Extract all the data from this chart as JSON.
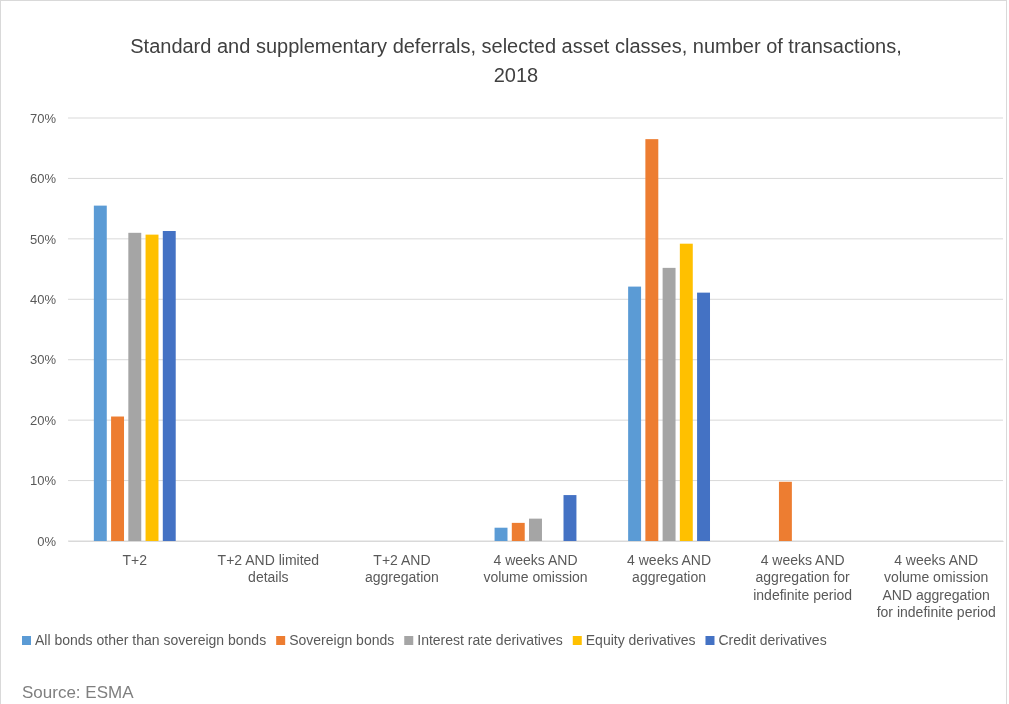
{
  "chart_data": {
    "type": "bar",
    "title": "Standard and supplementary deferrals, selected asset classes, number of transactions, 2018",
    "categories": [
      "T+2",
      "T+2 AND limited details",
      "T+2 AND aggregation",
      "4 weeks AND volume omission",
      "4 weeks AND aggregation",
      "4 weeks AND aggregation for indefinite period",
      "4 weeks AND volume omission AND aggregation for indefinite period"
    ],
    "series": [
      {
        "name": "All bonds other than sovereign bonds",
        "color": "#5b9bd5",
        "values": [
          55.5,
          0,
          0,
          2.2,
          42.1,
          0,
          0
        ]
      },
      {
        "name": "Sovereign bonds",
        "color": "#ed7d31",
        "values": [
          20.6,
          0,
          0,
          3,
          66.5,
          9.8,
          0
        ]
      },
      {
        "name": "Interest rate derivatives",
        "color": "#a5a5a5",
        "values": [
          51,
          0,
          0,
          3.7,
          45.2,
          0,
          0
        ]
      },
      {
        "name": "Equity derivatives",
        "color": "#ffc000",
        "values": [
          50.7,
          0,
          0,
          0,
          49.2,
          0,
          0
        ]
      },
      {
        "name": "Credit derivatives",
        "color": "#4472c4",
        "values": [
          51.3,
          0,
          0,
          7.6,
          41.1,
          0,
          0
        ]
      }
    ],
    "ylim": [
      0,
      70
    ],
    "yticks": [
      {
        "value": 0,
        "label": "0%"
      },
      {
        "value": 10,
        "label": "10%"
      },
      {
        "value": 20,
        "label": "20%"
      },
      {
        "value": 30,
        "label": "30%"
      },
      {
        "value": 40,
        "label": "40%"
      },
      {
        "value": 50,
        "label": "50%"
      },
      {
        "value": 60,
        "label": "60%"
      },
      {
        "value": 70,
        "label": "70%"
      }
    ],
    "grid": "y",
    "legend": "bottom",
    "annotations": [
      "Source: ESMA"
    ]
  }
}
